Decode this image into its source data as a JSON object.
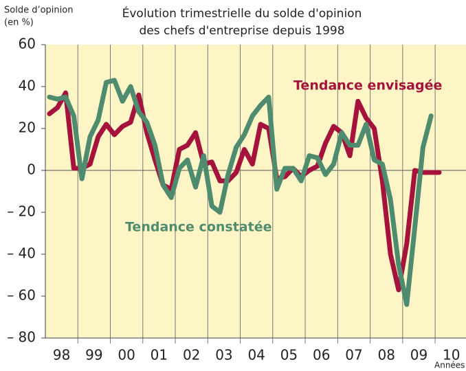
{
  "chart_data": {
    "type": "line",
    "title": "Évolution trimestrielle du solde d'opinion",
    "subtitle": "des chefs d'entreprise depuis 1998",
    "y_label": "Solde d’opinion",
    "y_unit": "(en %)",
    "x_label": "Années",
    "x": [
      1998.125,
      1998.375,
      1998.625,
      1998.875,
      1999.125,
      1999.375,
      1999.625,
      1999.875,
      2000.125,
      2000.375,
      2000.625,
      2000.875,
      2001.125,
      2001.375,
      2001.625,
      2001.875,
      2002.125,
      2002.375,
      2002.625,
      2002.875,
      2003.125,
      2003.375,
      2003.625,
      2003.875,
      2004.125,
      2004.375,
      2004.625,
      2004.875,
      2005.125,
      2005.375,
      2005.625,
      2005.875,
      2006.125,
      2006.375,
      2006.625,
      2006.875,
      2007.125,
      2007.375,
      2007.625,
      2007.875,
      2008.125,
      2008.375,
      2008.625,
      2008.875,
      2009.125,
      2009.375,
      2009.625,
      2009.875,
      2010.125
    ],
    "series": [
      {
        "name": "Tendance envisagée",
        "color": "#a5123c",
        "values": [
          27,
          30,
          37,
          1,
          1,
          3,
          16,
          22,
          17,
          21,
          23,
          36,
          18,
          5,
          -7,
          -9,
          10,
          12,
          18,
          3,
          4,
          -5,
          -5,
          -1,
          10,
          3,
          22,
          20,
          -4,
          -3,
          1,
          -3,
          0,
          2,
          13,
          21,
          18,
          7,
          33,
          25,
          20,
          -5,
          -40,
          -57,
          -35,
          0,
          -1,
          -1,
          -1
        ]
      },
      {
        "name": "Tendance constatée",
        "color": "#4f8b6f",
        "values": [
          35,
          34,
          35,
          26,
          -4,
          16,
          24,
          42,
          43,
          33,
          40,
          28,
          23,
          12,
          -7,
          -13,
          1,
          5,
          -8,
          7,
          -17,
          -20,
          -2,
          11,
          17,
          26,
          31,
          35,
          -9,
          1,
          1,
          -5,
          7,
          6,
          -2,
          3,
          18,
          12,
          12,
          22,
          5,
          3,
          -14,
          -45,
          -64,
          -27,
          11,
          26,
          null
        ]
      }
    ],
    "xlim": [
      1998,
      2010.95
    ],
    "xticks": [
      {
        "value": 1998.5,
        "label": "98"
      },
      {
        "value": 1999.5,
        "label": "99"
      },
      {
        "value": 2000.5,
        "label": "00"
      },
      {
        "value": 2001.5,
        "label": "01"
      },
      {
        "value": 2002.5,
        "label": "02"
      },
      {
        "value": 2003.5,
        "label": "03"
      },
      {
        "value": 2004.5,
        "label": "04"
      },
      {
        "value": 2005.5,
        "label": "05"
      },
      {
        "value": 2006.5,
        "label": "06"
      },
      {
        "value": 2007.5,
        "label": "07"
      },
      {
        "value": 2008.5,
        "label": "08"
      },
      {
        "value": 2009.5,
        "label": "09"
      },
      {
        "value": 2010.5,
        "label": "10"
      }
    ],
    "ylim": [
      -80,
      60
    ],
    "yticks": [
      {
        "value": -80,
        "label": "– 80"
      },
      {
        "value": -60,
        "label": "– 60"
      },
      {
        "value": -40,
        "label": "– 40"
      },
      {
        "value": -20,
        "label": "– 20"
      },
      0,
      20,
      40,
      60
    ]
  }
}
